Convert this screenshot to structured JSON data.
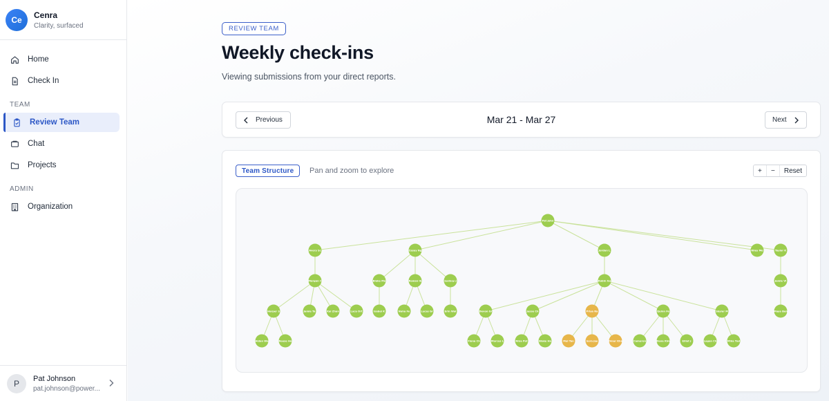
{
  "brand": {
    "initials": "Ce",
    "name": "Cenra",
    "tagline": "Clarity, surfaced"
  },
  "nav": {
    "home": "Home",
    "checkin": "Check In",
    "team_section": "TEAM",
    "review_team": "Review Team",
    "chat": "Chat",
    "projects": "Projects",
    "admin_section": "ADMIN",
    "organization": "Organization"
  },
  "user": {
    "initial": "P",
    "name": "Pat Johnson",
    "email": "pat.johnson@power..."
  },
  "header": {
    "badge": "REVIEW TEAM",
    "title": "Weekly check-ins",
    "subtitle": "Viewing submissions from your direct reports."
  },
  "week": {
    "previous": "Previous",
    "range": "Mar 21 - Mar 27",
    "next": "Next"
  },
  "structure": {
    "tag": "Team Structure",
    "hint": "Pan and zoom to explore",
    "zoom_in": "+",
    "zoom_out": "−",
    "reset": "Reset"
  },
  "colors": {
    "accent": "#2c57c6",
    "node_green": "#9dcd4f",
    "node_amber": "#e7b64a",
    "edge": "#c9e29a"
  },
  "org_tree": {
    "nodes": [
      {
        "id": "root",
        "label": "Pat John",
        "color": "green"
      },
      {
        "id": "a",
        "parent": "root",
        "label": "Avery Sc",
        "color": "green"
      },
      {
        "id": "b",
        "parent": "root",
        "label": "Casey Ng",
        "color": "green"
      },
      {
        "id": "c",
        "parent": "root",
        "label": "Jordan L",
        "color": "green"
      },
      {
        "id": "d",
        "parent": "root",
        "label": "Riley Mo",
        "color": "green"
      },
      {
        "id": "e",
        "parent": "root",
        "label": "Taylor K",
        "color": "green"
      },
      {
        "id": "a1",
        "parent": "a",
        "label": "Morgan C",
        "color": "green"
      },
      {
        "id": "b1",
        "parent": "b",
        "label": "Blake Mo",
        "color": "green"
      },
      {
        "id": "b2",
        "parent": "b",
        "label": "Rowan Ib",
        "color": "green"
      },
      {
        "id": "b3",
        "parent": "b",
        "label": "Sydney J",
        "color": "green"
      },
      {
        "id": "c1",
        "parent": "c",
        "label": "Robin Gu",
        "color": "green"
      },
      {
        "id": "e1",
        "parent": "e",
        "label": "Jamie Vi",
        "color": "green"
      },
      {
        "id": "a11",
        "parent": "a1",
        "label": "Harper S",
        "color": "green"
      },
      {
        "id": "a12",
        "parent": "a1",
        "label": "Jamie Ta",
        "color": "green"
      },
      {
        "id": "a13",
        "parent": "a1",
        "label": "Kai Zhan",
        "color": "green"
      },
      {
        "id": "a14",
        "parent": "a1",
        "label": "Luca Ort",
        "color": "green"
      },
      {
        "id": "b11",
        "parent": "b1",
        "label": "Isabel K",
        "color": "green"
      },
      {
        "id": "b21",
        "parent": "b2",
        "label": "Naha Fe",
        "color": "green"
      },
      {
        "id": "b22",
        "parent": "b2",
        "label": "Lucas Gr",
        "color": "green"
      },
      {
        "id": "b31",
        "parent": "b3",
        "label": "Erin Wal",
        "color": "green"
      },
      {
        "id": "c11",
        "parent": "c1",
        "label": "Devon Gr",
        "color": "green"
      },
      {
        "id": "c12",
        "parent": "c1",
        "label": "Jesse Ch",
        "color": "green"
      },
      {
        "id": "c13",
        "parent": "c1",
        "label": "Priya Ra",
        "color": "amber"
      },
      {
        "id": "c14",
        "parent": "c1",
        "label": "Quinn Fo",
        "color": "green"
      },
      {
        "id": "c15",
        "parent": "c1",
        "label": "Skyler M",
        "color": "green"
      },
      {
        "id": "e11",
        "parent": "e1",
        "label": "Maya Ben",
        "color": "green"
      },
      {
        "id": "a111",
        "parent": "a11",
        "label": "Aidan Wa",
        "color": "green"
      },
      {
        "id": "a112",
        "parent": "a11",
        "label": "Reese Ho",
        "color": "green"
      },
      {
        "id": "c111",
        "parent": "c11",
        "label": "Fiona Ch",
        "color": "green"
      },
      {
        "id": "c112",
        "parent": "c11",
        "label": "Marcus L",
        "color": "green"
      },
      {
        "id": "c121",
        "parent": "c12",
        "label": "Nina Pat",
        "color": "green"
      },
      {
        "id": "c122",
        "parent": "c12",
        "label": "Blake Ha",
        "color": "green"
      },
      {
        "id": "c131",
        "parent": "c13",
        "label": "Mei Tan",
        "color": "amber"
      },
      {
        "id": "c132",
        "parent": "c13",
        "label": "Sora Jae",
        "color": "amber"
      },
      {
        "id": "c133",
        "parent": "c13",
        "label": "Omar Kha",
        "color": "amber"
      },
      {
        "id": "c141",
        "parent": "c14",
        "label": "Cameron",
        "color": "green"
      },
      {
        "id": "c142",
        "parent": "c14",
        "label": "Dana Kim",
        "color": "green"
      },
      {
        "id": "c143",
        "parent": "c14",
        "label": "Elliot J",
        "color": "green"
      },
      {
        "id": "c151",
        "parent": "c15",
        "label": "Logan Ch",
        "color": "green"
      },
      {
        "id": "c152",
        "parent": "c15",
        "label": "Mika Yad",
        "color": "green"
      }
    ]
  }
}
